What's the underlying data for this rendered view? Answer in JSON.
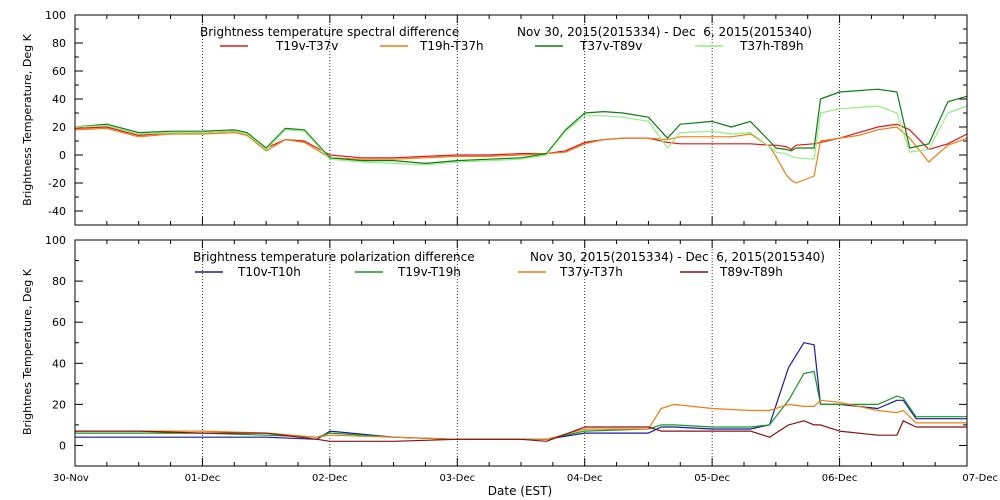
{
  "chart_data": [
    {
      "type": "line",
      "title": "Brightness temperature spectral difference",
      "date_range": "Nov 30, 2015(2015334) - Dec  6, 2015(2015340)",
      "ylabel": "Brightness Temperature, Deg K",
      "ylim": [
        -50,
        100
      ],
      "yticks": [
        -40,
        -20,
        0,
        20,
        40,
        60,
        80,
        100
      ],
      "xlim": [
        "2015-11-30",
        "2015-12-07"
      ],
      "grid": "vertical dotted at day boundaries",
      "legend_placement": "top",
      "series": [
        {
          "name": "T19v-T37v",
          "color": "#e01818",
          "x": [
            0,
            0.25,
            0.5,
            0.75,
            1,
            1.25,
            1.35,
            1.5,
            1.65,
            1.8,
            2,
            2.25,
            2.5,
            2.75,
            3,
            3.25,
            3.5,
            3.7,
            3.85,
            4,
            4.15,
            4.3,
            4.5,
            4.65,
            4.75,
            5,
            5.15,
            5.3,
            5.45,
            5.5,
            5.58,
            5.62,
            5.66,
            5.8,
            5.85,
            6,
            6.15,
            6.3,
            6.45,
            6.55,
            6.7,
            6.85,
            7
          ],
          "y": [
            19,
            20,
            14,
            16,
            16,
            17,
            15,
            5,
            11,
            10,
            0,
            -2,
            -2,
            -1,
            0,
            0,
            1,
            1,
            3,
            9,
            11,
            12,
            12,
            9,
            8,
            8,
            8,
            8,
            7,
            7,
            6,
            4,
            7,
            8,
            9,
            12,
            16,
            20,
            22,
            18,
            4,
            8,
            15
          ]
        },
        {
          "name": "T19h-T37h",
          "color": "#ee7d14",
          "x": [
            0,
            0.25,
            0.5,
            0.75,
            1,
            1.25,
            1.35,
            1.5,
            1.65,
            1.8,
            2,
            2.25,
            2.5,
            2.75,
            3,
            3.25,
            3.5,
            3.7,
            3.85,
            4,
            4.15,
            4.3,
            4.5,
            4.65,
            4.75,
            5,
            5.15,
            5.3,
            5.45,
            5.5,
            5.58,
            5.62,
            5.66,
            5.8,
            5.85,
            6,
            6.15,
            6.3,
            6.45,
            6.55,
            6.7,
            6.85,
            7
          ],
          "y": [
            18,
            19,
            13,
            15,
            15,
            16,
            14,
            3,
            11,
            9,
            -2,
            -3,
            -3,
            -2,
            -1,
            -1,
            0,
            1,
            2,
            8,
            11,
            12,
            12,
            11,
            13,
            13,
            13,
            15,
            6,
            -1,
            -14,
            -18,
            -20,
            -15,
            10,
            12,
            14,
            18,
            20,
            12,
            -5,
            7,
            12
          ]
        },
        {
          "name": "T37v-T89v",
          "color": "#0f7a12",
          "x": [
            0,
            0.25,
            0.5,
            0.75,
            1,
            1.25,
            1.35,
            1.5,
            1.65,
            1.8,
            2,
            2.25,
            2.5,
            2.75,
            3,
            3.25,
            3.5,
            3.7,
            3.85,
            4,
            4.15,
            4.3,
            4.5,
            4.65,
            4.75,
            5,
            5.15,
            5.3,
            5.45,
            5.5,
            5.58,
            5.62,
            5.66,
            5.8,
            5.85,
            6,
            6.15,
            6.3,
            6.45,
            6.55,
            6.7,
            6.85,
            7
          ],
          "y": [
            20,
            22,
            16,
            17,
            17,
            18,
            16,
            5,
            19,
            18,
            -2,
            -4,
            -4,
            -6,
            -4,
            -3,
            -2,
            1,
            18,
            30,
            31,
            30,
            27,
            12,
            22,
            24,
            20,
            24,
            10,
            5,
            4,
            3,
            5,
            5,
            40,
            45,
            46,
            47,
            45,
            5,
            8,
            38,
            42
          ]
        },
        {
          "name": "T37h-T89h",
          "color": "#8ff07f",
          "x": [
            0,
            0.25,
            0.5,
            0.75,
            1,
            1.25,
            1.35,
            1.5,
            1.65,
            1.8,
            2,
            2.25,
            2.5,
            2.75,
            3,
            3.25,
            3.5,
            3.7,
            3.85,
            4,
            4.15,
            4.3,
            4.5,
            4.65,
            4.75,
            5,
            5.15,
            5.3,
            5.45,
            5.5,
            5.58,
            5.62,
            5.66,
            5.8,
            5.85,
            6,
            6.15,
            6.3,
            6.45,
            6.55,
            6.7,
            6.85,
            7
          ],
          "y": [
            20,
            21,
            15,
            16,
            16,
            17,
            15,
            4,
            18,
            17,
            -3,
            -5,
            -6,
            -7,
            -5,
            -4,
            -3,
            0,
            17,
            28,
            28,
            27,
            24,
            5,
            16,
            17,
            15,
            16,
            6,
            2,
            1,
            -1,
            -2,
            -3,
            30,
            33,
            34,
            35,
            30,
            2,
            4,
            30,
            35
          ]
        }
      ]
    },
    {
      "type": "line",
      "title": "Brightness temperature polarization difference",
      "date_range": "Nov 30, 2015(2015334) - Dec  6, 2015(2015340)",
      "ylabel": "Brightnes Temperature, Deg K",
      "xlabel": "Date (EST)",
      "ylim": [
        -10,
        100
      ],
      "yticks": [
        0,
        20,
        40,
        60,
        80,
        100
      ],
      "xlim": [
        "2015-11-30",
        "2015-12-07"
      ],
      "xtick_labels": [
        "30-Nov",
        "01-Dec",
        "02-Dec",
        "03-Dec",
        "04-Dec",
        "05-Dec",
        "06-Dec",
        "07-Dec"
      ],
      "grid": "vertical dotted at day boundaries",
      "legend_placement": "top",
      "series": [
        {
          "name": "T10v-T10h",
          "color": "#1a1aa6",
          "x": [
            0,
            0.5,
            1,
            1.5,
            1.9,
            2,
            2.5,
            3,
            3.5,
            3.7,
            4,
            4.5,
            4.6,
            4.7,
            5,
            5.3,
            5.45,
            5.6,
            5.72,
            5.8,
            5.85,
            6,
            6.3,
            6.45,
            6.5,
            6.6,
            7
          ],
          "y": [
            4,
            4,
            4,
            4,
            3,
            7,
            4,
            3,
            3,
            3,
            6,
            6,
            9,
            9,
            8,
            8,
            10,
            38,
            50,
            49,
            20,
            20,
            18,
            22,
            22,
            13,
            13
          ]
        },
        {
          "name": "T19v-T19h",
          "color": "#149a1a",
          "x": [
            0,
            0.5,
            1,
            1.5,
            1.9,
            2,
            2.5,
            3,
            3.5,
            3.7,
            4,
            4.5,
            4.6,
            4.7,
            5,
            5.3,
            5.45,
            5.6,
            5.72,
            5.8,
            5.85,
            6,
            6.3,
            6.45,
            6.5,
            6.6,
            7
          ],
          "y": [
            6,
            6,
            6,
            5,
            4,
            6,
            4,
            3,
            3,
            3,
            7,
            8,
            10,
            10,
            9,
            9,
            10,
            22,
            35,
            36,
            20,
            20,
            20,
            24,
            23,
            14,
            14
          ]
        },
        {
          "name": "T37v-T37h",
          "color": "#ee7d14",
          "x": [
            0,
            0.5,
            1,
            1.5,
            1.9,
            2,
            2.5,
            3,
            3.5,
            3.7,
            4,
            4.5,
            4.6,
            4.7,
            5,
            5.3,
            5.45,
            5.6,
            5.72,
            5.8,
            5.85,
            6,
            6.3,
            6.45,
            6.5,
            6.6,
            7
          ],
          "y": [
            7,
            7,
            7,
            6,
            4,
            5,
            4,
            3,
            3,
            3,
            8,
            8,
            18,
            20,
            18,
            17,
            17,
            20,
            19,
            19,
            22,
            21,
            17,
            16,
            17,
            11,
            11
          ]
        },
        {
          "name": "T89v-T89h",
          "color": "#8a1010",
          "x": [
            0,
            0.5,
            1,
            1.5,
            1.9,
            2,
            2.5,
            3,
            3.5,
            3.7,
            4,
            4.5,
            4.6,
            4.7,
            5,
            5.3,
            5.45,
            5.6,
            5.72,
            5.8,
            5.85,
            6,
            6.3,
            6.45,
            6.5,
            6.6,
            7
          ],
          "y": [
            7,
            7,
            6,
            6,
            3,
            2,
            2,
            3,
            3,
            2,
            9,
            9,
            7,
            7,
            7,
            7,
            4,
            10,
            12,
            10,
            10,
            7,
            5,
            5,
            12,
            9,
            9
          ]
        }
      ]
    }
  ]
}
